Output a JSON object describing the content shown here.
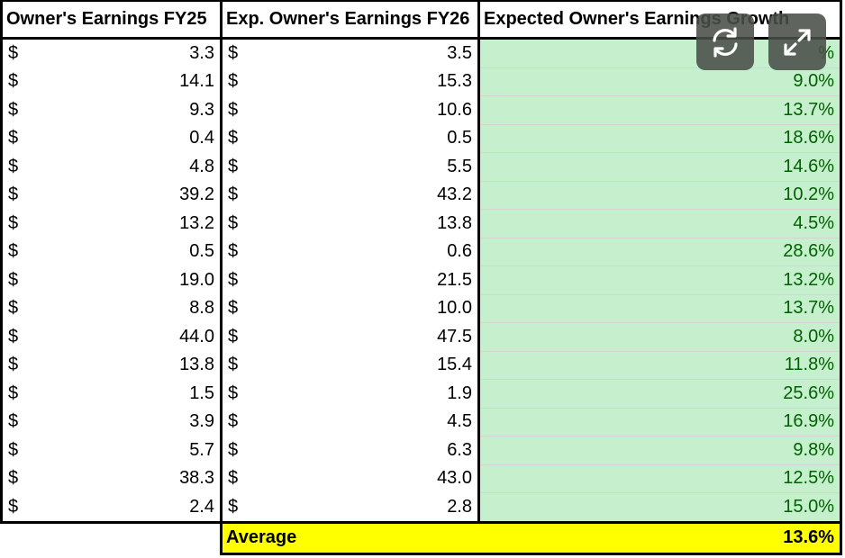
{
  "headers": {
    "col1": "Owner's Earnings FY25",
    "col2": "Exp. Owner's Earnings FY26",
    "col3": "Expected Owner's Earnings Growth"
  },
  "currency_symbol": "$",
  "rows": [
    {
      "fy25": "3.3",
      "fy26": "3.5",
      "growth": "%"
    },
    {
      "fy25": "14.1",
      "fy26": "15.3",
      "growth": "9.0%"
    },
    {
      "fy25": "9.3",
      "fy26": "10.6",
      "growth": "13.7%"
    },
    {
      "fy25": "0.4",
      "fy26": "0.5",
      "growth": "18.6%"
    },
    {
      "fy25": "4.8",
      "fy26": "5.5",
      "growth": "14.6%"
    },
    {
      "fy25": "39.2",
      "fy26": "43.2",
      "growth": "10.2%"
    },
    {
      "fy25": "13.2",
      "fy26": "13.8",
      "growth": "4.5%"
    },
    {
      "fy25": "0.5",
      "fy26": "0.6",
      "growth": "28.6%"
    },
    {
      "fy25": "19.0",
      "fy26": "21.5",
      "growth": "13.2%"
    },
    {
      "fy25": "8.8",
      "fy26": "10.0",
      "growth": "13.7%"
    },
    {
      "fy25": "44.0",
      "fy26": "47.5",
      "growth": "8.0%"
    },
    {
      "fy25": "13.8",
      "fy26": "15.4",
      "growth": "11.8%"
    },
    {
      "fy25": "1.5",
      "fy26": "1.9",
      "growth": "25.6%"
    },
    {
      "fy25": "3.9",
      "fy26": "4.5",
      "growth": "16.9%"
    },
    {
      "fy25": "5.7",
      "fy26": "6.3",
      "growth": "9.8%"
    },
    {
      "fy25": "38.3",
      "fy26": "43.0",
      "growth": "12.5%"
    },
    {
      "fy25": "2.4",
      "fy26": "2.8",
      "growth": "15.0%"
    }
  ],
  "average": {
    "label": "Average",
    "value": "13.6%"
  },
  "overlay_buttons": {
    "refresh_icon": "refresh-icon",
    "expand_icon": "expand-icon",
    "background": "#4a4f48"
  },
  "colors": {
    "growth_fill": "#c6efce",
    "growth_text": "#006100",
    "average_fill": "#ffff00"
  }
}
